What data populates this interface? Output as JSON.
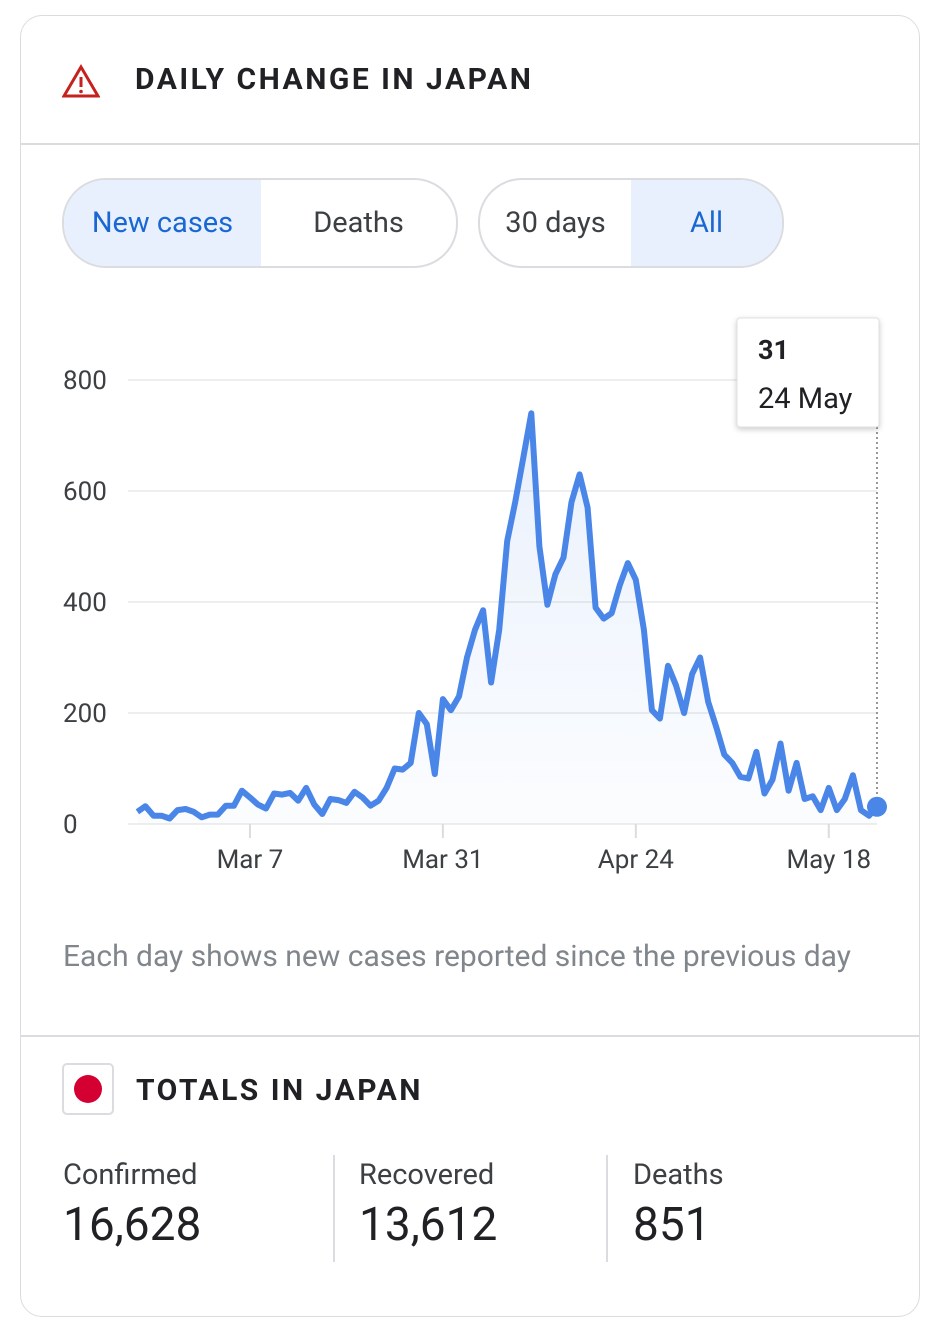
{
  "header": {
    "title": "DAILY CHANGE IN JAPAN"
  },
  "toggles": {
    "metric": [
      "New cases",
      "Deaths"
    ],
    "range": [
      "30 days",
      "All"
    ]
  },
  "chart_data": {
    "type": "line",
    "categories": [
      null,
      null,
      null,
      null,
      null,
      null,
      null,
      null,
      null,
      null,
      null,
      null,
      null,
      null,
      "Mar 7",
      null,
      null,
      null,
      null,
      null,
      null,
      null,
      null,
      null,
      null,
      null,
      null,
      null,
      null,
      null,
      null,
      null,
      null,
      null,
      null,
      null,
      null,
      null,
      "Mar 31",
      null,
      null,
      null,
      null,
      null,
      null,
      null,
      null,
      null,
      null,
      null,
      null,
      null,
      null,
      null,
      null,
      null,
      null,
      null,
      null,
      null,
      null,
      null,
      "Apr 24",
      null,
      null,
      null,
      null,
      null,
      null,
      null,
      null,
      null,
      null,
      null,
      null,
      null,
      null,
      null,
      null,
      null,
      null,
      null,
      null,
      null,
      null,
      null,
      "May 18",
      null,
      null,
      null,
      null,
      null,
      null
    ],
    "values": [
      22,
      32,
      15,
      15,
      10,
      25,
      27,
      22,
      12,
      17,
      17,
      33,
      33,
      60,
      48,
      35,
      28,
      55,
      53,
      56,
      42,
      65,
      35,
      18,
      45,
      43,
      38,
      58,
      48,
      33,
      42,
      65,
      100,
      98,
      110,
      200,
      180,
      90,
      225,
      205,
      230,
      300,
      350,
      385,
      255,
      350,
      510,
      580,
      660,
      740,
      500,
      395,
      450,
      480,
      580,
      630,
      570,
      390,
      370,
      380,
      430,
      470,
      440,
      350,
      205,
      190,
      285,
      250,
      200,
      270,
      300,
      220,
      175,
      125,
      110,
      85,
      82,
      130,
      55,
      80,
      145,
      60,
      110,
      45,
      50,
      25,
      65,
      25,
      45,
      88,
      25,
      15,
      31
    ],
    "color": "#4a86e8",
    "ylim": [
      0,
      800
    ],
    "yticks": [
      0,
      200,
      400,
      600,
      800
    ],
    "grid": true,
    "tooltip_date": "24 May",
    "note": "Each day shows new cases reported since the previous day"
  },
  "totals": {
    "title": "TOTALS IN JAPAN",
    "items": [
      {
        "label": "Confirmed",
        "value": "16,628"
      },
      {
        "label": "Recovered",
        "value": "13,612"
      },
      {
        "label": "Deaths",
        "value": "851"
      }
    ]
  }
}
